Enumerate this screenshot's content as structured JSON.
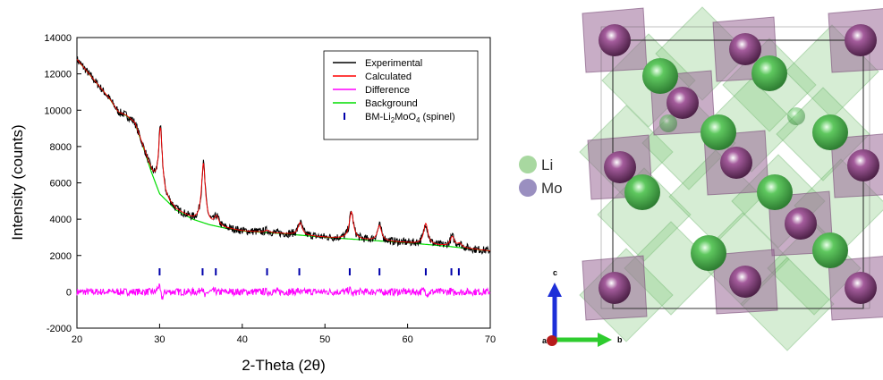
{
  "chart_data": {
    "type": "line",
    "xlabel": "2-Theta (2θ)",
    "ylabel": "Intensity (counts)",
    "xlim": [
      20,
      70
    ],
    "ylim": [
      -2000,
      14000
    ],
    "xticks": [
      20,
      30,
      40,
      50,
      60,
      70
    ],
    "yticks": [
      -2000,
      0,
      2000,
      4000,
      6000,
      8000,
      10000,
      12000,
      14000
    ],
    "grid": false,
    "legend_position": "top-right",
    "background": {
      "x": [
        20,
        22,
        24,
        25,
        26,
        27,
        28,
        29,
        30,
        32,
        34,
        36,
        38,
        40,
        45,
        50,
        55,
        60,
        65,
        70
      ],
      "y": [
        12800,
        11700,
        10600,
        9900,
        9700,
        9300,
        8000,
        6600,
        5400,
        4500,
        4000,
        3700,
        3500,
        3350,
        3200,
        3000,
        2850,
        2700,
        2500,
        2250
      ]
    },
    "peaks": [
      {
        "center": 30.1,
        "height": 3700,
        "width": 0.28
      },
      {
        "center": 35.3,
        "height": 3250,
        "width": 0.28
      },
      {
        "center": 36.9,
        "height": 500,
        "width": 0.3
      },
      {
        "center": 43.0,
        "height": 120,
        "width": 0.3
      },
      {
        "center": 47.0,
        "height": 700,
        "width": 0.3
      },
      {
        "center": 53.2,
        "height": 1500,
        "width": 0.3
      },
      {
        "center": 56.6,
        "height": 850,
        "width": 0.3
      },
      {
        "center": 62.2,
        "height": 1150,
        "width": 0.3
      },
      {
        "center": 65.4,
        "height": 550,
        "width": 0.3
      },
      {
        "center": 66.3,
        "height": 200,
        "width": 0.3
      }
    ],
    "difference_noise": 220,
    "tick_marks_y": 1100,
    "reflections_2theta": [
      30.0,
      35.2,
      36.8,
      43.0,
      46.9,
      53.0,
      56.6,
      62.2,
      65.3,
      66.2
    ],
    "series": [
      {
        "name": "Experimental",
        "color": "#000000"
      },
      {
        "name": "Calculated",
        "color": "#ff0000"
      },
      {
        "name": "Difference",
        "color": "#ff00ff"
      },
      {
        "name": "Background",
        "color": "#00dd00"
      },
      {
        "name_prefix": "BM-Li",
        "name_sub1": "2",
        "name_mid": "MoO",
        "name_sub2": "4",
        "name_suffix": " (spinel)",
        "color": "#0000aa",
        "style": "ticks"
      }
    ]
  },
  "crystal": {
    "legend": [
      {
        "label": "Li",
        "color": "#a8d8a0"
      },
      {
        "label": "Mo",
        "color": "#9a8fc0"
      }
    ],
    "axes": {
      "c": "c",
      "b": "b",
      "a": "a"
    }
  }
}
